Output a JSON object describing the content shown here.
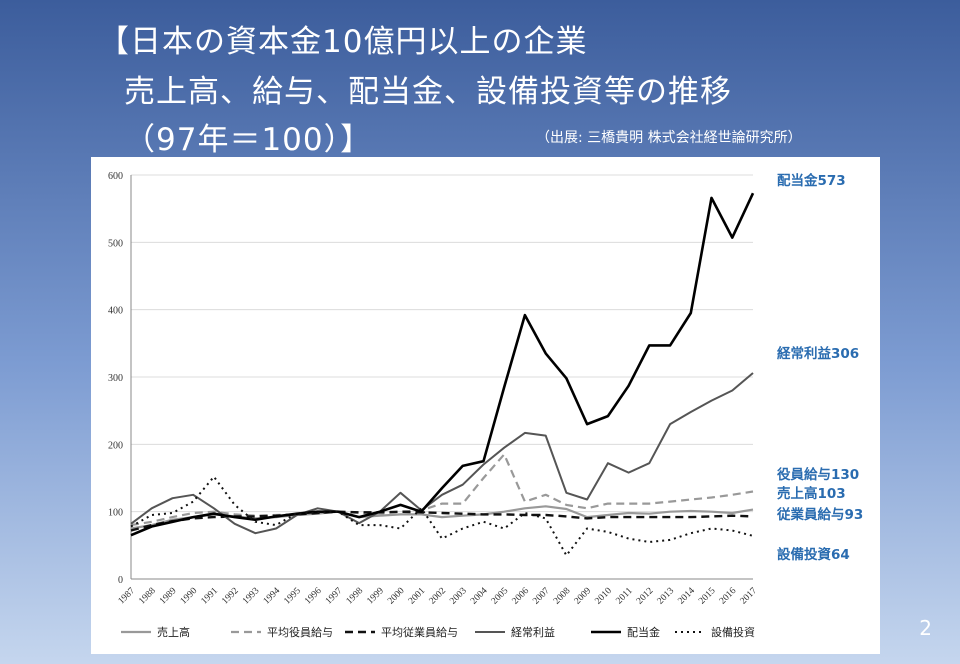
{
  "slide": {
    "title_line1": "【日本の資本金10億円以上の企業",
    "title_line2": "売上高、給与、配当金、設備投資等の推移",
    "title_line3": "（97年＝100）】",
    "source": "（出展: 三橋貴明  株式会社経世論研究所）",
    "page_number": "2"
  },
  "chart_data": {
    "type": "line",
    "x": [
      "1987",
      "1988",
      "1989",
      "1990",
      "1991",
      "1992",
      "1993",
      "1994",
      "1995",
      "1996",
      "1997",
      "1998",
      "1999",
      "2000",
      "2001",
      "2002",
      "2003",
      "2004",
      "2005",
      "2006",
      "2007",
      "2008",
      "2009",
      "2010",
      "2011",
      "2012",
      "2013",
      "2014",
      "2015",
      "2016",
      "2017"
    ],
    "ylim": [
      0,
      600
    ],
    "yticks": [
      "0",
      "100",
      "200",
      "300",
      "400",
      "500",
      "600"
    ],
    "series": [
      {
        "name": "売上高",
        "style": "solid-gray",
        "color": "#999999",
        "width": 2.2,
        "values": [
          75,
          80,
          88,
          92,
          96,
          93,
          90,
          92,
          95,
          97,
          100,
          92,
          94,
          96,
          96,
          92,
          94,
          96,
          100,
          105,
          108,
          104,
          92,
          95,
          98,
          97,
          100,
          101,
          100,
          98,
          103
        ],
        "label": "売上高103"
      },
      {
        "name": "平均役員給与",
        "style": "dashed-gray",
        "color": "#999999",
        "width": 2.2,
        "values": [
          80,
          85,
          92,
          98,
          100,
          96,
          94,
          95,
          96,
          98,
          100,
          98,
          97,
          100,
          102,
          112,
          112,
          150,
          185,
          115,
          125,
          110,
          105,
          112,
          112,
          112,
          115,
          118,
          121,
          125,
          130
        ],
        "label": "役員給与130"
      },
      {
        "name": "平均従業員給与",
        "style": "dashed-black",
        "color": "#111111",
        "width": 2.4,
        "values": [
          72,
          80,
          86,
          90,
          92,
          93,
          93,
          94,
          96,
          98,
          100,
          99,
          99,
          100,
          99,
          98,
          97,
          96,
          96,
          95,
          95,
          93,
          90,
          92,
          92,
          92,
          92,
          92,
          93,
          94,
          93
        ],
        "label": "従業員給与93"
      },
      {
        "name": "経常利益",
        "style": "solid-dkgray",
        "color": "#555555",
        "width": 2.0,
        "values": [
          82,
          105,
          120,
          125,
          105,
          82,
          68,
          75,
          95,
          105,
          100,
          83,
          100,
          128,
          102,
          125,
          140,
          170,
          195,
          217,
          213,
          128,
          118,
          172,
          158,
          172,
          230,
          248,
          265,
          280,
          306
        ],
        "label": "経常利益306"
      },
      {
        "name": "配当金",
        "style": "solid-black",
        "color": "#000000",
        "width": 2.6,
        "values": [
          65,
          78,
          85,
          92,
          97,
          92,
          88,
          93,
          97,
          100,
          100,
          92,
          100,
          110,
          100,
          135,
          168,
          175,
          285,
          392,
          335,
          298,
          230,
          242,
          287,
          347,
          347,
          395,
          566,
          507,
          573
        ],
        "label": "配当金573"
      },
      {
        "name": "設備投資",
        "style": "dotted-black",
        "color": "#111111",
        "width": 2.0,
        "values": [
          78,
          95,
          98,
          115,
          152,
          110,
          85,
          80,
          98,
          98,
          100,
          80,
          80,
          75,
          105,
          60,
          75,
          85,
          75,
          98,
          90,
          35,
          75,
          70,
          60,
          55,
          58,
          68,
          75,
          72,
          64
        ],
        "label": "設備投資64"
      }
    ],
    "legend_position": "bottom",
    "grid": true
  }
}
